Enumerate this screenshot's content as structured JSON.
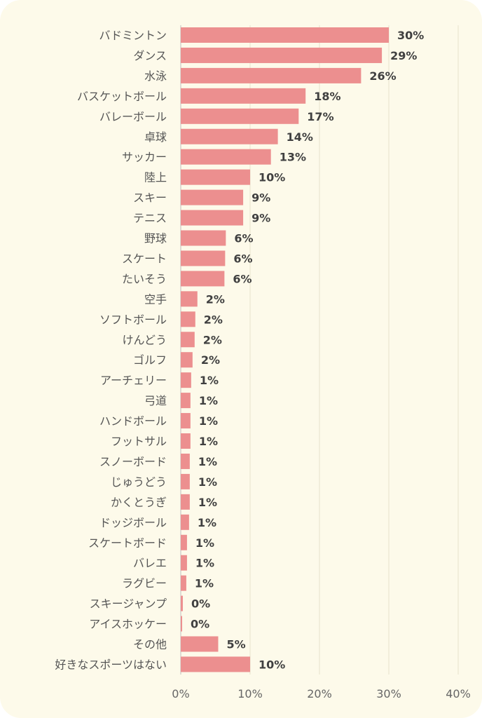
{
  "colors": {
    "background": "#fdfaea",
    "bar": "#ec8f8f",
    "grid": "#e6e2cc",
    "value_text": "#404040",
    "category_text": "#555555"
  },
  "chart_data": {
    "type": "bar",
    "orientation": "horizontal",
    "title": "",
    "xlabel": "",
    "ylabel": "",
    "xlim": [
      0,
      40
    ],
    "x_ticks": [
      "0%",
      "10%",
      "20%",
      "30%",
      "40%"
    ],
    "grid": true,
    "legend": "none",
    "categories": [
      "バドミントン",
      "ダンス",
      "水泳",
      "バスケットボール",
      "バレーボール",
      "卓球",
      "サッカー",
      "陸上",
      "スキー",
      "テニス",
      "野球",
      "スケート",
      "たいそう",
      "空手",
      "ソフトボール",
      "けんどう",
      "ゴルフ",
      "アーチェリー",
      "弓道",
      "ハンドボール",
      "フットサル",
      "スノーボード",
      "じゅうどう",
      "かくとうぎ",
      "ドッジボール",
      "スケートボード",
      "バレエ",
      "ラグビー",
      "スキージャンプ",
      "アイスホッケー",
      "その他",
      "好きなスポーツはない"
    ],
    "values": [
      30,
      29,
      26,
      18,
      17,
      14,
      13,
      10,
      9,
      9,
      6.5,
      6.4,
      6.3,
      2.4,
      2.1,
      2.0,
      1.7,
      1.5,
      1.4,
      1.4,
      1.4,
      1.3,
      1.3,
      1.3,
      1.2,
      0.9,
      0.9,
      0.8,
      0.3,
      0.2,
      5.4,
      10
    ],
    "value_labels": [
      "30%",
      "29%",
      "26%",
      "18%",
      "17%",
      "14%",
      "13%",
      "10%",
      "9%",
      "9%",
      "6%",
      "6%",
      "6%",
      "2%",
      "2%",
      "2%",
      "2%",
      "1%",
      "1%",
      "1%",
      "1%",
      "1%",
      "1%",
      "1%",
      "1%",
      "1%",
      "1%",
      "1%",
      "0%",
      "0%",
      "5%",
      "10%"
    ]
  }
}
